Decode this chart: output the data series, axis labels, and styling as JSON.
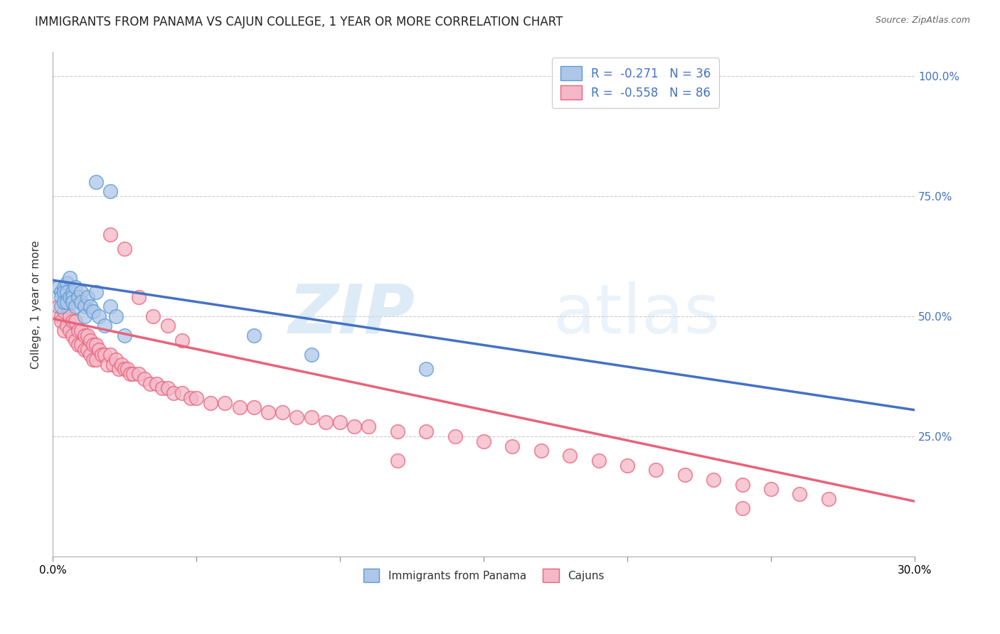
{
  "title": "IMMIGRANTS FROM PANAMA VS CAJUN COLLEGE, 1 YEAR OR MORE CORRELATION CHART",
  "source": "Source: ZipAtlas.com",
  "ylabel": "College, 1 year or more",
  "ylabel_right_labels": [
    "100.0%",
    "75.0%",
    "50.0%",
    "25.0%"
  ],
  "ylabel_right_positions": [
    1.0,
    0.75,
    0.5,
    0.25
  ],
  "xlim": [
    0.0,
    0.3
  ],
  "ylim": [
    0.0,
    1.05
  ],
  "legend_r1": "R =  -0.271",
  "legend_n1": "N = 36",
  "legend_r2": "R =  -0.558",
  "legend_n2": "N = 86",
  "blue_fill": "#aec6e8",
  "blue_edge": "#5b9bd5",
  "pink_fill": "#f4b8c8",
  "pink_edge": "#e8637a",
  "blue_line": "#4472c4",
  "pink_line": "#e8637a",
  "background_color": "#ffffff",
  "grid_color": "#cccccc",
  "blue_scatter_x": [
    0.002,
    0.003,
    0.003,
    0.003,
    0.004,
    0.004,
    0.004,
    0.005,
    0.005,
    0.005,
    0.006,
    0.006,
    0.007,
    0.007,
    0.007,
    0.008,
    0.008,
    0.009,
    0.01,
    0.01,
    0.011,
    0.011,
    0.012,
    0.013,
    0.014,
    0.015,
    0.016,
    0.018,
    0.02,
    0.022,
    0.025,
    0.07,
    0.09,
    0.13,
    0.015,
    0.02
  ],
  "blue_scatter_y": [
    0.56,
    0.55,
    0.54,
    0.52,
    0.56,
    0.55,
    0.53,
    0.57,
    0.55,
    0.53,
    0.58,
    0.54,
    0.55,
    0.54,
    0.53,
    0.56,
    0.52,
    0.54,
    0.55,
    0.53,
    0.52,
    0.5,
    0.54,
    0.52,
    0.51,
    0.55,
    0.5,
    0.48,
    0.52,
    0.5,
    0.46,
    0.46,
    0.42,
    0.39,
    0.78,
    0.76
  ],
  "pink_scatter_x": [
    0.002,
    0.003,
    0.003,
    0.004,
    0.004,
    0.005,
    0.005,
    0.006,
    0.006,
    0.007,
    0.007,
    0.008,
    0.008,
    0.009,
    0.009,
    0.01,
    0.01,
    0.011,
    0.011,
    0.012,
    0.012,
    0.013,
    0.013,
    0.014,
    0.014,
    0.015,
    0.015,
    0.016,
    0.017,
    0.018,
    0.019,
    0.02,
    0.021,
    0.022,
    0.023,
    0.024,
    0.025,
    0.026,
    0.027,
    0.028,
    0.03,
    0.032,
    0.034,
    0.036,
    0.038,
    0.04,
    0.042,
    0.045,
    0.048,
    0.05,
    0.055,
    0.06,
    0.065,
    0.07,
    0.075,
    0.08,
    0.085,
    0.09,
    0.095,
    0.1,
    0.105,
    0.11,
    0.12,
    0.13,
    0.14,
    0.15,
    0.16,
    0.17,
    0.18,
    0.19,
    0.2,
    0.21,
    0.22,
    0.23,
    0.24,
    0.25,
    0.26,
    0.27,
    0.02,
    0.025,
    0.03,
    0.035,
    0.04,
    0.045,
    0.12,
    0.24
  ],
  "pink_scatter_y": [
    0.52,
    0.5,
    0.49,
    0.51,
    0.47,
    0.52,
    0.48,
    0.5,
    0.47,
    0.49,
    0.46,
    0.49,
    0.45,
    0.47,
    0.44,
    0.47,
    0.44,
    0.46,
    0.43,
    0.46,
    0.43,
    0.45,
    0.42,
    0.44,
    0.41,
    0.44,
    0.41,
    0.43,
    0.42,
    0.42,
    0.4,
    0.42,
    0.4,
    0.41,
    0.39,
    0.4,
    0.39,
    0.39,
    0.38,
    0.38,
    0.38,
    0.37,
    0.36,
    0.36,
    0.35,
    0.35,
    0.34,
    0.34,
    0.33,
    0.33,
    0.32,
    0.32,
    0.31,
    0.31,
    0.3,
    0.3,
    0.29,
    0.29,
    0.28,
    0.28,
    0.27,
    0.27,
    0.26,
    0.26,
    0.25,
    0.24,
    0.23,
    0.22,
    0.21,
    0.2,
    0.19,
    0.18,
    0.17,
    0.16,
    0.15,
    0.14,
    0.13,
    0.12,
    0.67,
    0.64,
    0.54,
    0.5,
    0.48,
    0.45,
    0.2,
    0.1
  ],
  "blue_line_x0": 0.0,
  "blue_line_x1": 0.3,
  "blue_line_y0": 0.575,
  "blue_line_y1": 0.305,
  "pink_line_x0": 0.0,
  "pink_line_x1": 0.3,
  "pink_line_y0": 0.495,
  "pink_line_y1": 0.115,
  "xtick_positions": [
    0.0,
    0.05,
    0.1,
    0.15,
    0.2,
    0.25,
    0.3
  ]
}
